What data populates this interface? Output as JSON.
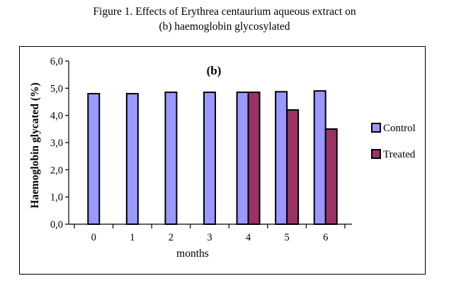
{
  "caption": {
    "line1": "Figure 1. Effects of Erythrea centaurium aqueous extract on",
    "line2": "(b) haemoglobin glycosylated"
  },
  "chart_data": {
    "type": "bar",
    "panel_label": "(b)",
    "categories": [
      "0",
      "1",
      "2",
      "3",
      "4",
      "5",
      "6"
    ],
    "series": [
      {
        "name": "Control",
        "color": "#9999ff",
        "values": [
          4.8,
          4.8,
          4.85,
          4.85,
          4.85,
          4.87,
          4.9
        ]
      },
      {
        "name": "Treated",
        "color": "#993366",
        "values": [
          null,
          null,
          null,
          null,
          4.85,
          4.2,
          3.5
        ]
      }
    ],
    "xlabel": "months",
    "ylabel": "Haemoglobin glycated (%)",
    "ylim": [
      0,
      6
    ],
    "yticks": [
      "0,0",
      "1,0",
      "2,0",
      "3,0",
      "4,0",
      "5,0",
      "6,0"
    ],
    "grid": false,
    "legend": "right"
  }
}
